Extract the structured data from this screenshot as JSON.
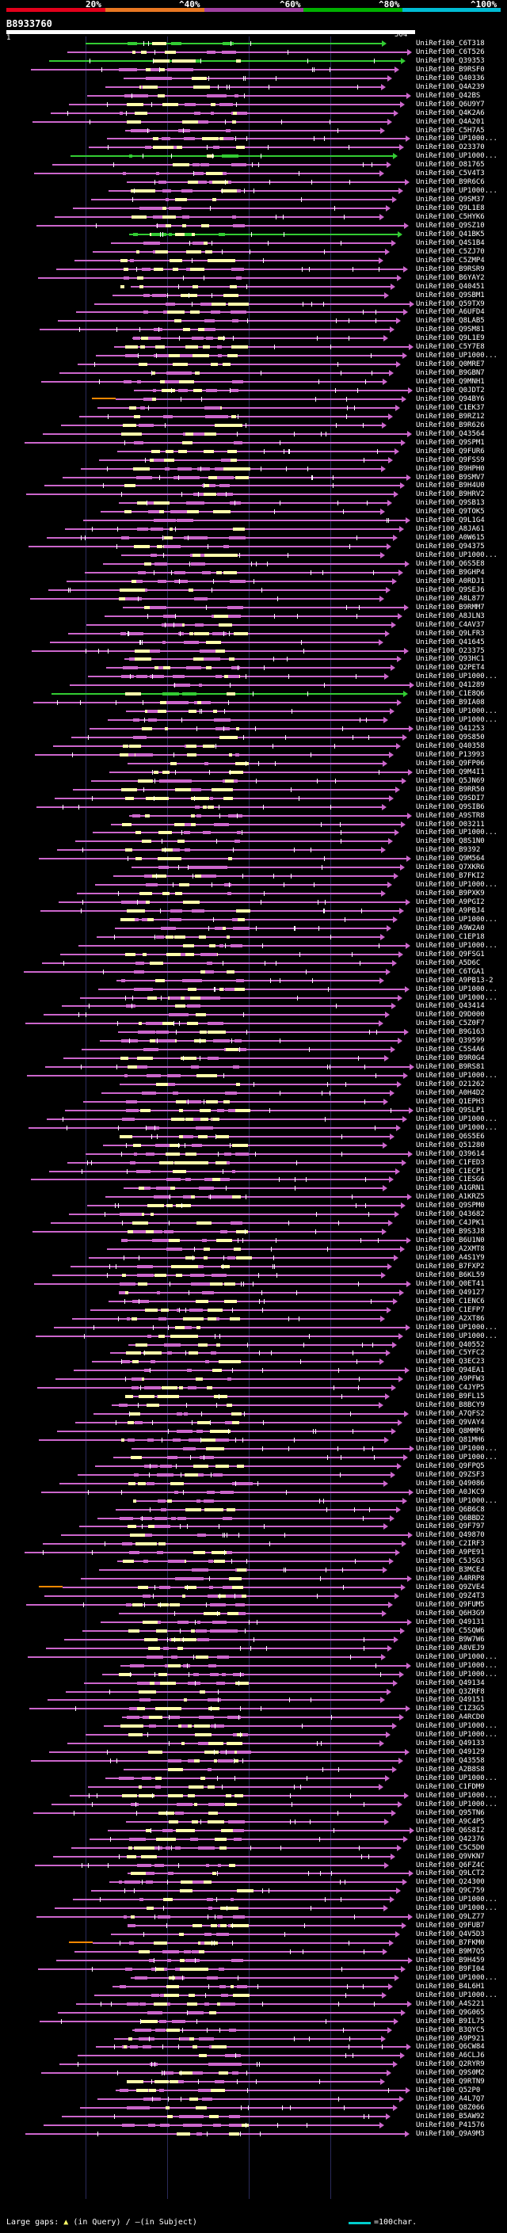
{
  "legend": {
    "ticks": [
      "20%",
      "^40%",
      "^60%",
      "^80%",
      "^100%"
    ],
    "colors": [
      "#e3001b",
      "#e87722",
      "#a040a0",
      "#00b000",
      "#00bcd4"
    ]
  },
  "query": {
    "id": "B8933760",
    "start": "1",
    "end": "504"
  },
  "hit_colors": {
    "magenta": "#cc66cc",
    "green": "#33cc33",
    "orange": "#ff8800",
    "gap": "#ffffff",
    "dense": "#ffffaa"
  },
  "hits": [
    "UniRef100_C6T318",
    "UniRef100_C6T526",
    "UniRef100_Q39353",
    "UniRef100_B9RSF0",
    "UniRef100_Q40336",
    "UniRef100_Q4A239",
    "UniRef100_Q42BS",
    "UniRef100_Q6U9Y7",
    "UniRef100_Q4K2A6",
    "UniRef100_Q4A201",
    "UniRef100_C5H7A5",
    "UniRef100_UP1000...",
    "UniRef100_O23370",
    "UniRef100_UP1000...",
    "UniRef100_O81765",
    "UniRef100_C5V4T3",
    "UniRef100_B9R6C6",
    "UniRef100_UP1000...",
    "UniRef100_Q9SM37",
    "UniRef100_Q9L1E8",
    "UniRef100_C5HYK6",
    "UniRef100_Q9SZ10",
    "UniRef100_Q41BK5",
    "UniRef100_Q4S1B4",
    "UniRef100_C5ZJ70",
    "UniRef100_C5ZMP4",
    "UniRef100_B9RSR9",
    "UniRef100_B6YAY2",
    "UniRef100_Q40451",
    "UniRef100_Q9SBM1",
    "UniRef100_Q59TX9",
    "UniRef100_A6UFD4",
    "UniRef100_Q8LAB5",
    "UniRef100_Q9SM81",
    "UniRef100_Q9L1E9",
    "UniRef100_C5Y7E8",
    "UniRef100_UP1000...",
    "UniRef100_Q0MRE7",
    "UniRef100_B9GBN7",
    "UniRef100_Q9MNH1",
    "UniRef100_Q0JDT2",
    "UniRef100_Q94BY6",
    "UniRef100_C1EK37",
    "UniRef100_B9RZ12",
    "UniRef100_B9R626",
    "UniRef100_Q43564",
    "UniRef100_Q9SPM1",
    "UniRef100_Q9FUR6",
    "UniRef100_Q9FSS9",
    "UniRef100_B9HPH0",
    "UniRef100_B9SMV7",
    "UniRef100_B9H4U0",
    "UniRef100_B9HRV2",
    "UniRef100_Q9SB13",
    "UniRef100_Q9TOK5",
    "UniRef100_Q9L1G4",
    "UniRef100_A8JA61",
    "UniRef100_A0W615",
    "UniRef100_Q94375",
    "UniRef100_UP1000...",
    "UniRef100_Q6S5E8",
    "UniRef100_B9GHP4",
    "UniRef100_A0RDJ1",
    "UniRef100_Q9SEJ6",
    "UniRef100_A8L877",
    "UniRef100_B9RMM7",
    "UniRef100_A8JLN3",
    "UniRef100_C4AV37",
    "UniRef100_Q9LFR3",
    "UniRef100_Q41645",
    "UniRef100_O23375",
    "UniRef100_Q93HC1",
    "UniRef100_Q2PET4",
    "UniRef100_UP1000...",
    "UniRef100_Q41289",
    "UniRef100_C1E8Q6",
    "UniRef100_B9IA08",
    "UniRef100_UP1000...",
    "UniRef100_UP1000...",
    "UniRef100_Q41253",
    "UniRef100_Q9S850",
    "UniRef100_Q40358",
    "UniRef100_P13993",
    "UniRef100_Q9FP06",
    "UniRef100_Q9M4I1",
    "UniRef100_Q5JN69",
    "UniRef100_B9RR50",
    "UniRef100_Q9SDI7",
    "UniRef100_Q9SIB6",
    "UniRef100_A9STR8",
    "UniRef100_O03211",
    "UniRef100_UP1000...",
    "UniRef100_Q8S1N0",
    "UniRef100_B9392",
    "UniRef100_Q9M564",
    "UniRef100_Q7XKR6",
    "UniRef100_B7FKI2",
    "UniRef100_UP1000...",
    "UniRef100_B9PXK9",
    "UniRef100_A9PGI2",
    "UniRef100_A9PBJ4",
    "UniRef100_UP1000...",
    "UniRef100_A9W2A0",
    "UniRef100_C1EP18",
    "UniRef100_UP1000...",
    "UniRef100_Q9FSG1",
    "UniRef100_A5D6C",
    "UniRef100_C6TGA1",
    "UniRef100_A9PB13-2",
    "UniRef100_UP1000...",
    "UniRef100_UP1000...",
    "UniRef100_Q43414",
    "UniRef100_Q9D000",
    "UniRef100_C5Z0F7",
    "UniRef100_B9G163",
    "UniRef100_Q39599",
    "UniRef100_C5S4A6",
    "UniRef100_B9R0G4",
    "UniRef100_B9RS81",
    "UniRef100_UP1000...",
    "UniRef100_O21262",
    "UniRef100_A0H4D2",
    "UniRef100_Q1EPH3",
    "UniRef100_Q9SLP1",
    "UniRef100_UP1000...",
    "UniRef100_UP1000...",
    "UniRef100_Q6S5E6",
    "UniRef100_Q51280",
    "UniRef100_Q39614",
    "UniRef100_C1FED3",
    "UniRef100_C1ECP1",
    "UniRef100_C1ESG6",
    "UniRef100_A1GRN1",
    "UniRef100_A1KRZ5",
    "UniRef100_Q9SPM0",
    "UniRef100_Q43682",
    "UniRef100_C4JPK1",
    "UniRef100_B9S3J8",
    "UniRef100_B6U1N0",
    "UniRef100_A2XMT8",
    "UniRef100_A4S1Y9",
    "UniRef100_B7FXP2",
    "UniRef100_B6KL59",
    "UniRef100_Q0ET41",
    "UniRef100_Q49127",
    "UniRef100_C1ENC6",
    "UniRef100_C1EFP7",
    "UniRef100_A2XT86",
    "UniRef100_UP1000...",
    "UniRef100_UP1000...",
    "UniRef100_Q40552",
    "UniRef100_C5YFC2",
    "UniRef100_Q3EC23",
    "UniRef100_Q94EA1",
    "UniRef100_A9PFW3",
    "UniRef100_C4JYP5",
    "UniRef100_B9FL15",
    "UniRef100_B8BCY9",
    "UniRef100_A7QFS2",
    "UniRef100_Q9VAY4",
    "UniRef100_Q8MMP6",
    "UniRef100_Q81MH6",
    "UniRef100_UP1000...",
    "UniRef100_UP1000...",
    "UniRef100_Q9FPQ5",
    "UniRef100_Q9ZSF3",
    "UniRef100_Q49086",
    "UniRef100_A0JKC9",
    "UniRef100_UP1000...",
    "UniRef100_Q6B6C8",
    "UniRef100_Q6BBD2",
    "UniRef100_Q9F797",
    "UniRef100_Q49870",
    "UniRef100_C2IRF3",
    "UniRef100_A9PE91",
    "UniRef100_C5JSG3",
    "UniRef100_B3MCE4",
    "UniRef100_A4RRP8",
    "UniRef100_Q9ZVE4",
    "UniRef100_Q9Z4T3",
    "UniRef100_Q9FUM5",
    "UniRef100_Q6H3G9",
    "UniRef100_Q49131",
    "UniRef100_C5SQW6",
    "UniRef100_B9W7W6",
    "UniRef100_A8VEJ9",
    "UniRef100_UP1000...",
    "UniRef100_UP1000...",
    "UniRef100_UP1000...",
    "UniRef100_Q49134",
    "UniRef100_Q3ZRF8",
    "UniRef100_Q49151",
    "UniRef100_C1Z3G5",
    "UniRef100_A4RCD0",
    "UniRef100_UP1000...",
    "UniRef100_UP1000...",
    "UniRef100_Q49133",
    "UniRef100_Q49129",
    "UniRef100_Q43558",
    "UniRef100_A2B8S8",
    "UniRef100_UP1000...",
    "UniRef100_C1FDM9",
    "UniRef100_UP1000...",
    "UniRef100_UP1000...",
    "UniRef100_Q95TN6",
    "UniRef100_A9C4P5",
    "UniRef100_Q6S8I2",
    "UniRef100_Q42376",
    "UniRef100_C5C5D0",
    "UniRef100_Q9VKN7",
    "UniRef100_Q6FZ4C",
    "UniRef100_Q9LCT2",
    "UniRef100_Q24300",
    "UniRef100_Q9C759",
    "UniRef100_UP1000...",
    "UniRef100_UP1000...",
    "UniRef100_Q9LZ77",
    "UniRef100_Q9FUB7",
    "UniRef100_Q4V5D3",
    "UniRef100_B7FKM0",
    "UniRef100_B9M7Q5",
    "UniRef100_B9H459",
    "UniRef100_B9FI04",
    "UniRef100_UP1000...",
    "UniRef100_B4L6H1",
    "UniRef100_UP1000...",
    "UniRef100_A4S221",
    "UniRef100_Q9G065",
    "UniRef100_B9IL75",
    "UniRef100_B3QYC5",
    "UniRef100_A9P921",
    "UniRef100_Q6CW84",
    "UniRef100_A6CLJ6",
    "UniRef100_Q2RYR9",
    "UniRef100_Q9S0M2",
    "UniRef100_Q9RTN9",
    "UniRef100_Q52P0",
    "UniRef100_A4L7Q7",
    "UniRef100_Q8Z066",
    "UniRef100_B5AW92",
    "UniRef100_P41576",
    "UniRef100_Q9A9M3"
  ],
  "footer": {
    "label": "Large gaps:",
    "symbol": "▲",
    "in_query": "(in Query)",
    "sep": "/",
    "in_subject": "—(in Subject)",
    "scale_label": "=100char."
  }
}
